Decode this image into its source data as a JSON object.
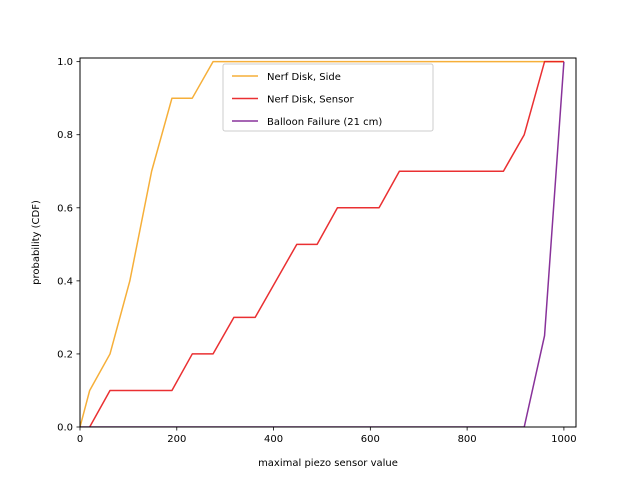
{
  "chart_data": {
    "type": "line",
    "title": "",
    "xlabel": "maximal piezo sensor value",
    "ylabel": "probability (CDF)",
    "xlim": [
      0,
      1025
    ],
    "ylim": [
      0,
      1.01
    ],
    "xticks": [
      0,
      200,
      400,
      600,
      800,
      1000
    ],
    "xtick_labels": [
      "0",
      "200",
      "400",
      "600",
      "800",
      "1000"
    ],
    "yticks": [
      0,
      0.2,
      0.4,
      0.6,
      0.8,
      1.0
    ],
    "ytick_labels": [
      "0.0",
      "0.2",
      "0.4",
      "0.6",
      "0.8",
      "1.0"
    ],
    "grid": false,
    "legend_position": "top-center",
    "series": [
      {
        "name": "Nerf Disk, Side",
        "color": "#f5a623",
        "x": [
          0,
          20,
          62,
          103,
          148,
          190,
          232,
          275,
          1000
        ],
        "y": [
          0,
          0.1,
          0.2,
          0.4,
          0.7,
          0.9,
          0.9,
          1.0,
          1.0
        ]
      },
      {
        "name": "Nerf Disk, Sensor",
        "color": "#e8191c",
        "x": [
          20,
          62,
          190,
          232,
          275,
          318,
          362,
          448,
          490,
          532,
          618,
          660,
          875,
          918,
          960,
          1000
        ],
        "y": [
          0,
          0.1,
          0.1,
          0.2,
          0.2,
          0.3,
          0.3,
          0.5,
          0.5,
          0.6,
          0.6,
          0.7,
          0.7,
          0.8,
          1.0,
          1.0
        ]
      },
      {
        "name": "Balloon Failure (21 cm)",
        "color": "#7b1c8f",
        "x": [
          0,
          918,
          960,
          1000
        ],
        "y": [
          0,
          0,
          0.25,
          1.0
        ]
      }
    ]
  }
}
